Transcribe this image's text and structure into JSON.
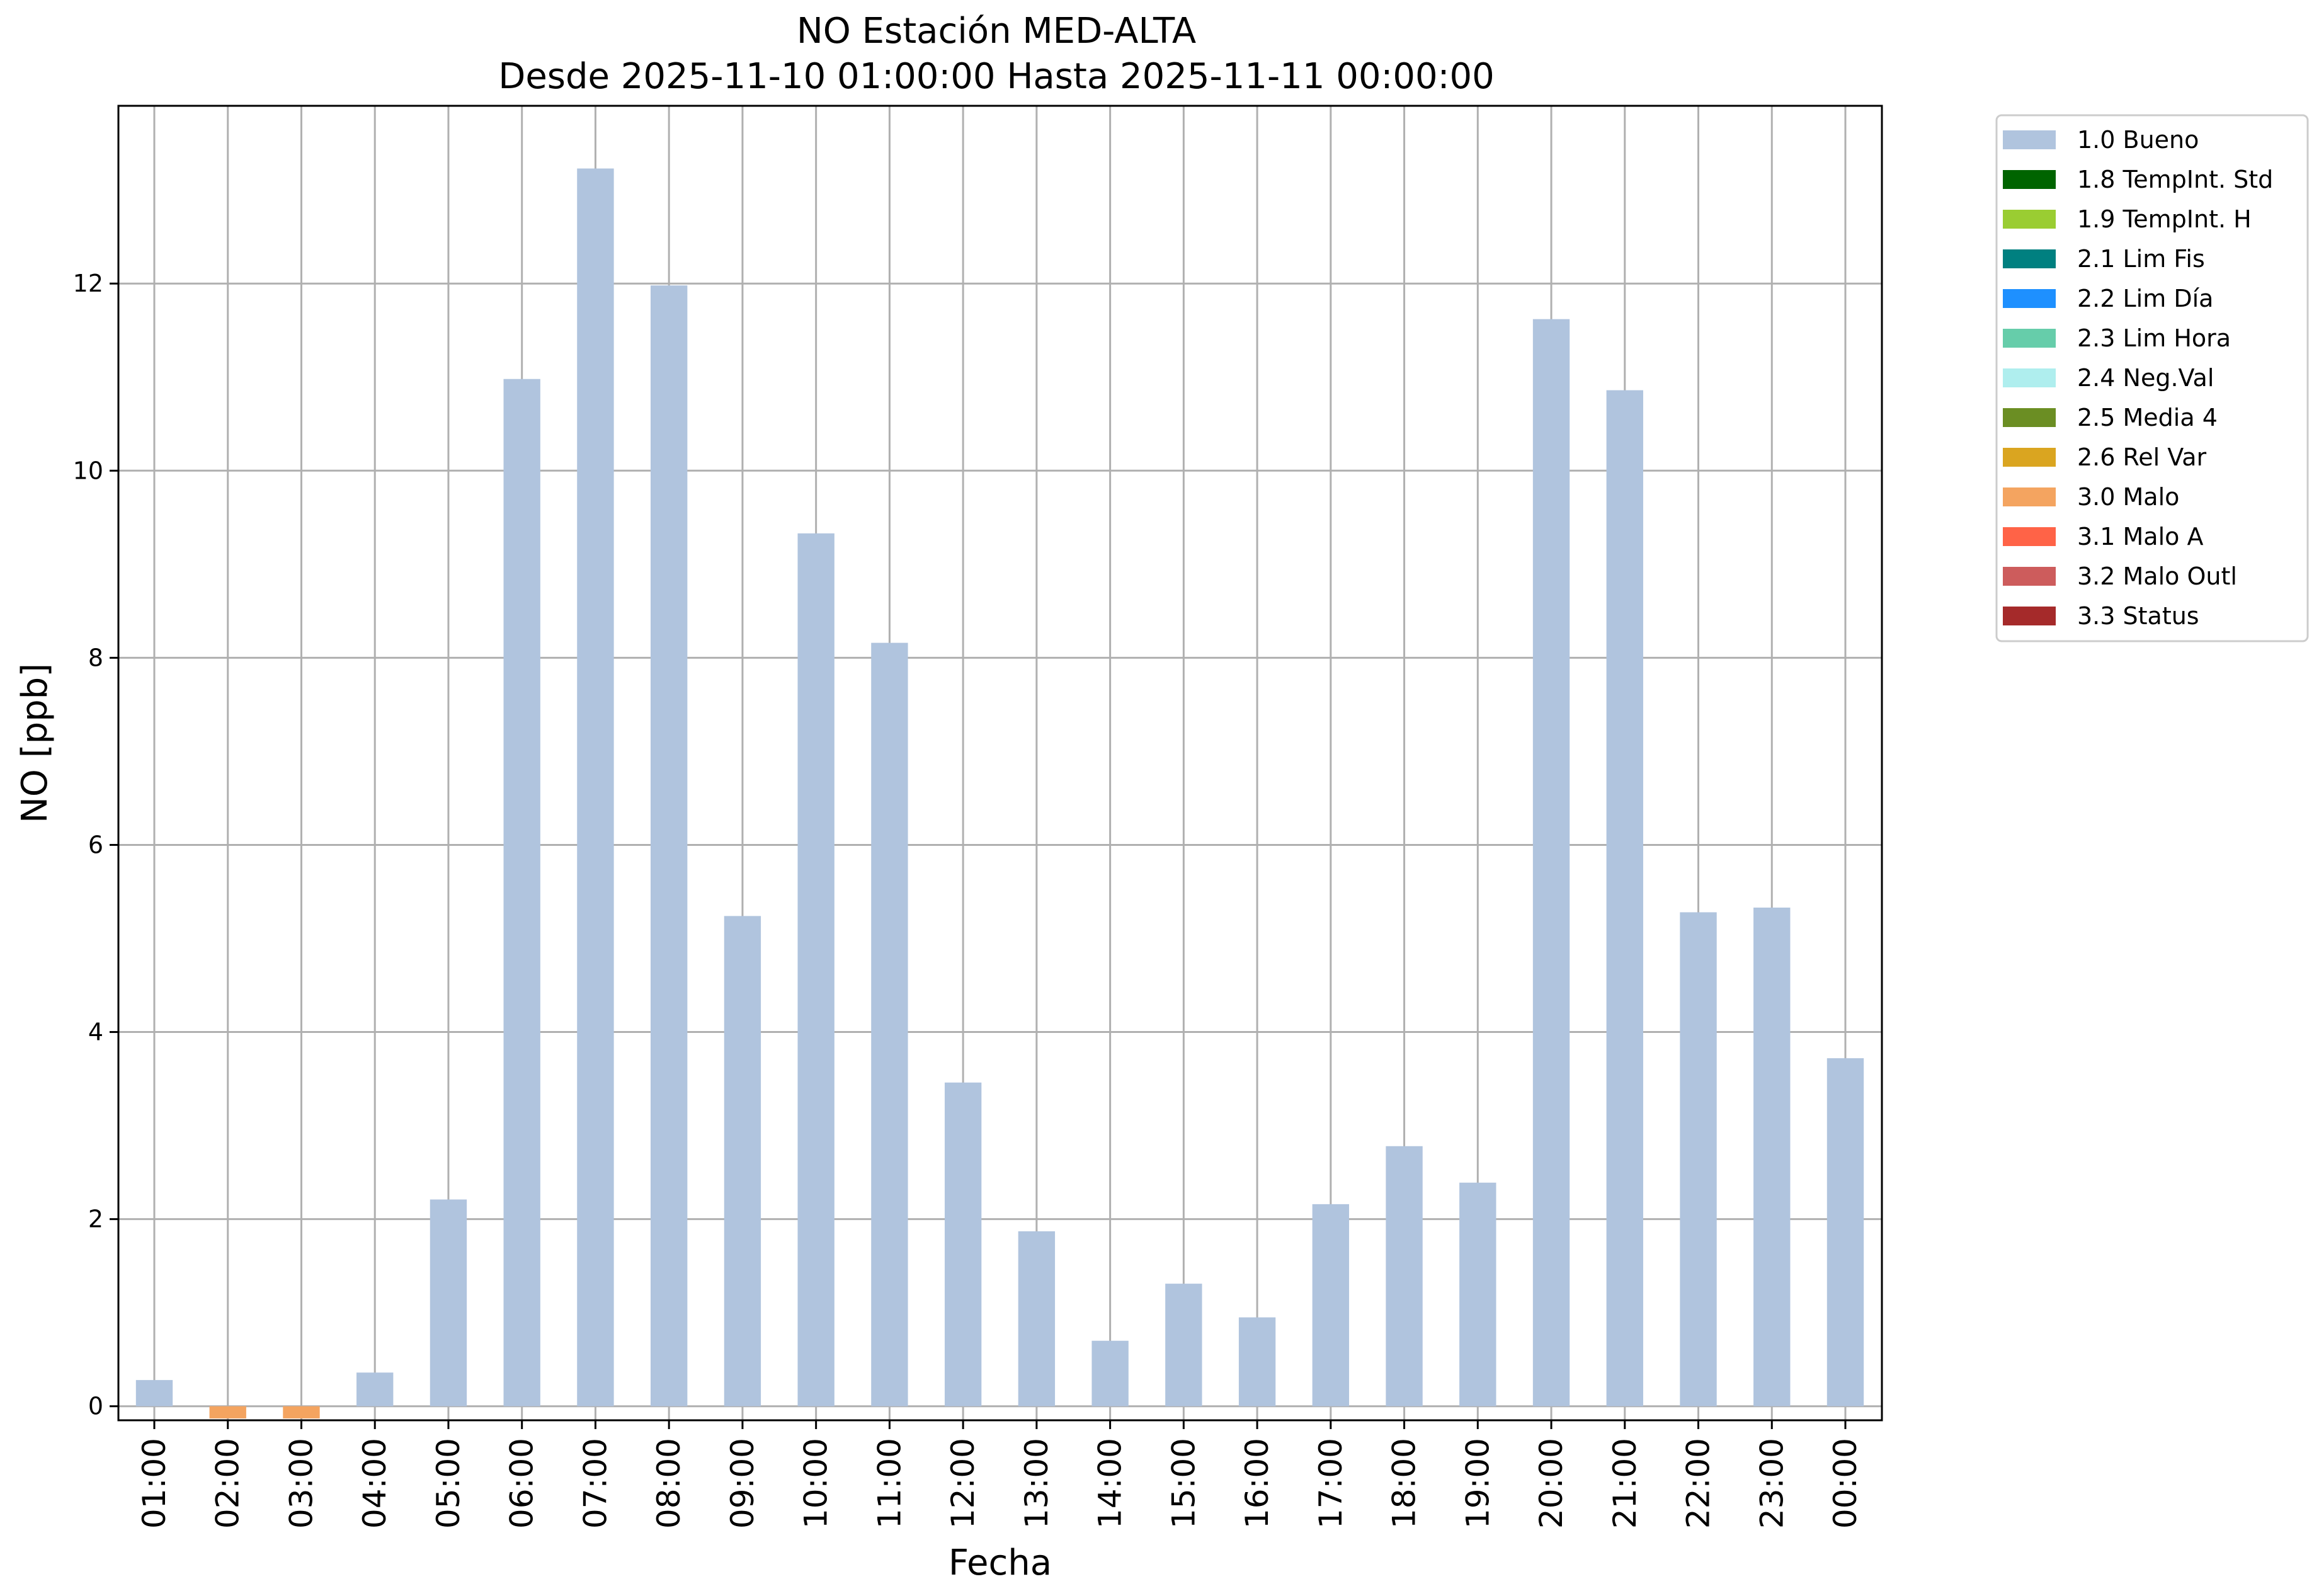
{
  "chart_data": {
    "type": "bar",
    "title": "NO Estación MED-ALTA",
    "subtitle": "Desde 2025-11-10 01:00:00 Hasta 2025-11-11 00:00:00",
    "xlabel": "Fecha",
    "ylabel": "NO [ppb]",
    "ylim": [
      -0.15,
      13.9
    ],
    "yticks": [
      0,
      2,
      4,
      6,
      8,
      10,
      12
    ],
    "grid": true,
    "legend_position": "outside-top-right",
    "categories": [
      "01:00",
      "02:00",
      "03:00",
      "04:00",
      "05:00",
      "06:00",
      "07:00",
      "08:00",
      "09:00",
      "10:00",
      "11:00",
      "12:00",
      "13:00",
      "14:00",
      "15:00",
      "16:00",
      "17:00",
      "18:00",
      "19:00",
      "20:00",
      "21:00",
      "22:00",
      "23:00",
      "00:00"
    ],
    "values": [
      0.28,
      -0.13,
      -0.13,
      0.36,
      2.21,
      10.98,
      13.23,
      11.98,
      5.24,
      9.33,
      8.16,
      3.46,
      1.87,
      0.7,
      1.31,
      0.95,
      2.16,
      2.78,
      2.39,
      11.62,
      10.86,
      5.28,
      5.33,
      3.72
    ],
    "quality": [
      "1.0 Bueno",
      "3.0 Malo",
      "3.0 Malo",
      "1.0 Bueno",
      "1.0 Bueno",
      "1.0 Bueno",
      "1.0 Bueno",
      "1.0 Bueno",
      "1.0 Bueno",
      "1.0 Bueno",
      "1.0 Bueno",
      "1.0 Bueno",
      "1.0 Bueno",
      "1.0 Bueno",
      "1.0 Bueno",
      "1.0 Bueno",
      "1.0 Bueno",
      "1.0 Bueno",
      "1.0 Bueno",
      "1.0 Bueno",
      "1.0 Bueno",
      "1.0 Bueno",
      "1.0 Bueno",
      "1.0 Bueno"
    ],
    "legend": [
      {
        "label": "1.0 Bueno",
        "color": "#b0c4de"
      },
      {
        "label": "1.8 TempInt. Std",
        "color": "#006400"
      },
      {
        "label": "1.9 TempInt. H",
        "color": "#9acd32"
      },
      {
        "label": "2.1 Lim Fis",
        "color": "#008080"
      },
      {
        "label": "2.2 Lim Día",
        "color": "#1e90ff"
      },
      {
        "label": "2.3 Lim Hora",
        "color": "#66cdaa"
      },
      {
        "label": "2.4 Neg.Val",
        "color": "#afeeee"
      },
      {
        "label": "2.5 Media 4",
        "color": "#6b8e23"
      },
      {
        "label": "2.6 Rel Var",
        "color": "#daa520"
      },
      {
        "label": "3.0 Malo",
        "color": "#f4a460"
      },
      {
        "label": "3.1 Malo A",
        "color": "#ff6347"
      },
      {
        "label": "3.2 Malo Outl",
        "color": "#cd5c5c"
      },
      {
        "label": "3.3 Status",
        "color": "#a52a2a"
      }
    ]
  }
}
